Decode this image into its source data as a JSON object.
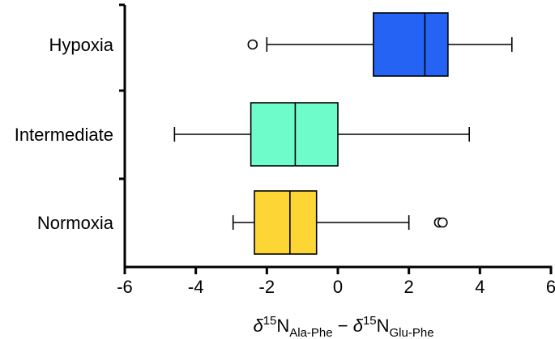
{
  "chart_data": {
    "type": "boxplot",
    "orientation": "horizontal",
    "xlabel": {
      "delta": "δ",
      "mass": "15",
      "element": "N",
      "sub1": "Ala-Phe",
      "minus": " − ",
      "sub2": "Glu-Phe"
    },
    "xlim": [
      -6,
      6
    ],
    "xticks": [
      "-6",
      "-4",
      "-2",
      "0",
      "2",
      "4",
      "6"
    ],
    "grid": false,
    "series": [
      {
        "name": "Hypoxia",
        "color": "#2563f5",
        "whisker_low": -2.0,
        "q1": 1.0,
        "median": 2.45,
        "q3": 3.1,
        "whisker_high": 4.9,
        "outliers": [
          -2.4
        ]
      },
      {
        "name": "Intermediate",
        "color": "#6ffccb",
        "whisker_low": -4.6,
        "q1": -2.45,
        "median": -1.2,
        "q3": 0.0,
        "whisker_high": 3.7,
        "outliers": []
      },
      {
        "name": "Normoxia",
        "color": "#fdd535",
        "whisker_low": -2.95,
        "q1": -2.35,
        "median": -1.35,
        "q3": -0.6,
        "whisker_high": 2.0,
        "outliers": [
          2.85,
          2.95
        ]
      }
    ]
  }
}
